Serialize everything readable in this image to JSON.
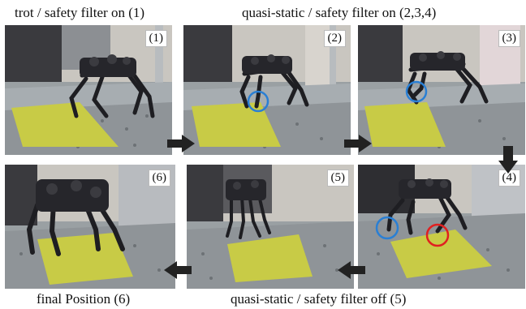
{
  "captions": {
    "top_left": "trot / safety filter on (1)",
    "top_right": "quasi-static / safety filter on (2,3,4)",
    "bottom_left": "final Position (6)",
    "bottom_right": "quasi-static / safety filter off (5)"
  },
  "panels": [
    {
      "label": "(1)"
    },
    {
      "label": "(2)"
    },
    {
      "label": "(3)"
    },
    {
      "label": "(4)"
    },
    {
      "label": "(5)"
    },
    {
      "label": "(6)"
    }
  ],
  "colors": {
    "arrow": "#222222",
    "circle_blue": "#2a7fd4",
    "circle_red": "#e02020",
    "mat": "#cfd24a"
  }
}
